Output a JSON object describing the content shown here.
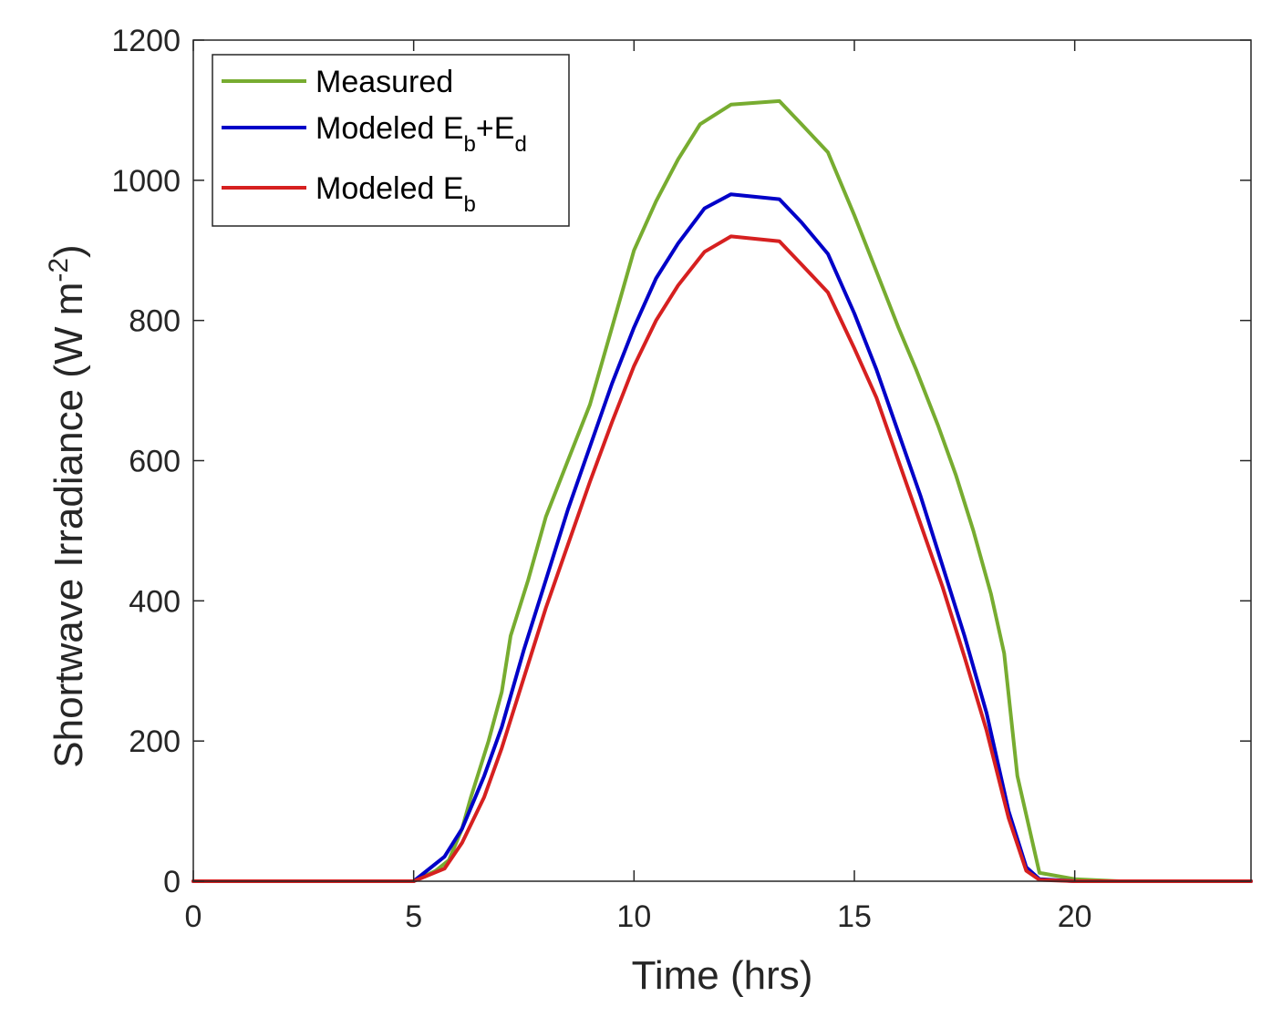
{
  "chart_data": {
    "type": "line",
    "title": "",
    "xlabel": "Time (hrs)",
    "ylabel": "Shortwave Irradiance (W m",
    "ylabel_superscript": "-2",
    "ylabel_suffix": ")",
    "xlim": [
      0,
      24
    ],
    "ylim": [
      0,
      1200
    ],
    "xticks": [
      0,
      5,
      10,
      15,
      20
    ],
    "yticks": [
      0,
      200,
      400,
      600,
      800,
      1000,
      1200
    ],
    "grid": false,
    "legend_position": "top-left",
    "series": [
      {
        "name": "Measured",
        "label_main": "Measured",
        "label_sub": "",
        "color": "#77ac30",
        "x": [
          0,
          5,
          5.5,
          5.8,
          6.1,
          6.3,
          6.7,
          7.0,
          7.2,
          7.6,
          8.0,
          8.5,
          9.0,
          9.5,
          10.0,
          10.5,
          11.0,
          11.5,
          12.2,
          13.3,
          13.8,
          14.4,
          15.0,
          15.5,
          16.0,
          16.4,
          16.9,
          17.3,
          17.7,
          18.1,
          18.4,
          18.7,
          19.2,
          20.0,
          21.0,
          24.0
        ],
        "y": [
          0,
          0,
          15,
          30,
          75,
          120,
          200,
          270,
          350,
          430,
          520,
          600,
          680,
          790,
          900,
          970,
          1030,
          1080,
          1108,
          1113,
          1080,
          1040,
          950,
          870,
          790,
          730,
          650,
          580,
          500,
          410,
          325,
          150,
          12,
          3,
          0,
          0
        ]
      },
      {
        "name": "Modeled Eb+Ed",
        "label_main": "Modeled E",
        "label_sub": "b",
        "label_mid": "+E",
        "label_sub2": "d",
        "color": "#0000c8",
        "x": [
          0,
          5,
          5.7,
          6.1,
          6.6,
          7.0,
          7.5,
          8.0,
          8.5,
          9.0,
          9.5,
          10.0,
          10.5,
          11.0,
          11.6,
          12.2,
          13.3,
          13.8,
          14.4,
          15.0,
          15.5,
          16.0,
          16.5,
          17.0,
          17.5,
          18.0,
          18.5,
          18.9,
          19.2,
          20.0,
          24.0
        ],
        "y": [
          0,
          0,
          35,
          75,
          150,
          220,
          330,
          430,
          530,
          620,
          710,
          790,
          860,
          910,
          960,
          980,
          973,
          940,
          895,
          810,
          730,
          640,
          550,
          450,
          350,
          240,
          100,
          20,
          3,
          0,
          0
        ]
      },
      {
        "name": "Modeled Eb",
        "label_main": "Modeled E",
        "label_sub": "b",
        "color": "#d62020",
        "x": [
          0,
          5,
          5.7,
          6.1,
          6.6,
          7.0,
          7.5,
          8.0,
          8.5,
          9.0,
          9.5,
          10.0,
          10.5,
          11.0,
          11.6,
          12.2,
          13.3,
          13.8,
          14.4,
          15.0,
          15.5,
          16.0,
          16.5,
          17.0,
          17.5,
          18.0,
          18.5,
          18.9,
          19.2,
          20.0,
          24.0
        ],
        "y": [
          0,
          0,
          18,
          55,
          120,
          190,
          290,
          390,
          480,
          570,
          655,
          735,
          800,
          850,
          898,
          920,
          913,
          880,
          840,
          760,
          690,
          600,
          510,
          420,
          320,
          215,
          90,
          15,
          2,
          0,
          0
        ]
      }
    ]
  }
}
